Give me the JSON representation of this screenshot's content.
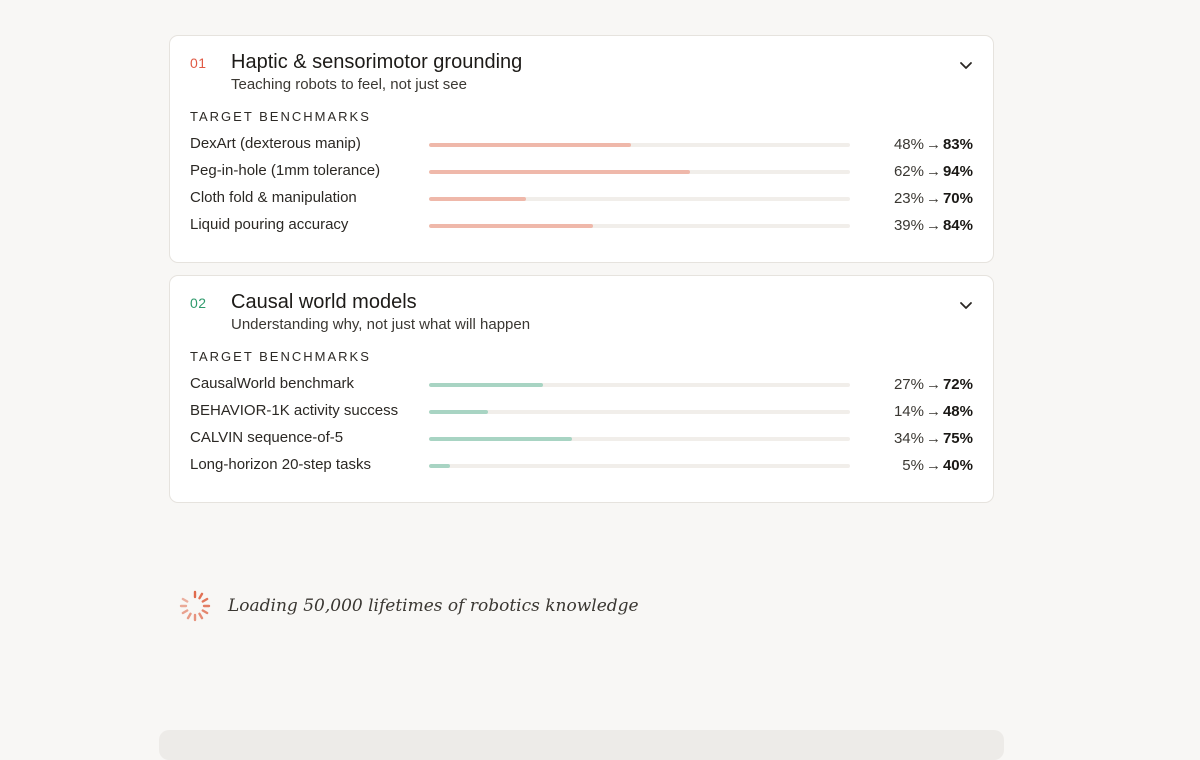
{
  "colors": {
    "accent_1": "#e05a45",
    "accent_2": "#2f9a6c",
    "bar_fill_1": "#efb8aa",
    "bar_fill_2": "#a8d4c3",
    "bar_track": "#f1eeea"
  },
  "cards": [
    {
      "number": "01",
      "title": "Haptic & sensorimotor grounding",
      "subtitle": "Teaching robots to feel, not just see",
      "section_label": "TARGET BENCHMARKS",
      "expand_icon": "chevron-down-icon",
      "benchmarks": [
        {
          "label": "DexArt (dexterous manip)",
          "current": "48%",
          "target": "83%",
          "progress": 0.48
        },
        {
          "label": "Peg-in-hole (1mm tolerance)",
          "current": "62%",
          "target": "94%",
          "progress": 0.62
        },
        {
          "label": "Cloth fold & manipulation",
          "current": "23%",
          "target": "70%",
          "progress": 0.23
        },
        {
          "label": "Liquid pouring accuracy",
          "current": "39%",
          "target": "84%",
          "progress": 0.39
        }
      ]
    },
    {
      "number": "02",
      "title": "Causal world models",
      "subtitle": "Understanding why, not just what will happen",
      "section_label": "TARGET BENCHMARKS",
      "expand_icon": "chevron-down-icon",
      "benchmarks": [
        {
          "label": "CausalWorld benchmark",
          "current": "27%",
          "target": "72%",
          "progress": 0.27
        },
        {
          "label": "BEHAVIOR-1K activity success",
          "current": "14%",
          "target": "48%",
          "progress": 0.14
        },
        {
          "label": "CALVIN sequence-of-5",
          "current": "34%",
          "target": "75%",
          "progress": 0.34
        },
        {
          "label": "Long-horizon 20-step tasks",
          "current": "5%",
          "target": "40%",
          "progress": 0.05
        }
      ]
    }
  ],
  "loading": {
    "icon": "spinner-icon",
    "text": "Loading 50,000 lifetimes of robotics knowledge"
  }
}
